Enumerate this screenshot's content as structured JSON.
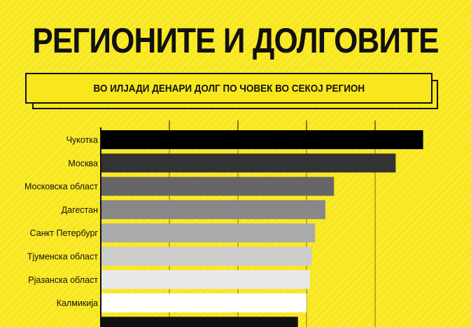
{
  "header": {
    "title": "РЕГИОНИТЕ И ДОЛГОВИТЕ",
    "subtitle": "ВО ИЛЈАДИ ДЕНАРИ ДОЛГ ПО ЧОВЕК ВО СЕКОЈ РЕГИОН"
  },
  "colors": {
    "background": "#f8e71c",
    "axis": "#111111",
    "bars": [
      "#000000",
      "#333333",
      "#666666",
      "#888888",
      "#aaaaaa",
      "#cccccc",
      "#e8e8e8",
      "#ffffff",
      "#111111"
    ]
  },
  "chart_data": {
    "type": "bar",
    "orientation": "horizontal",
    "categories": [
      "Чукотка",
      "Москва",
      "Московска област",
      "Дагестан",
      "Санкт Петербург",
      "Тјуменска област",
      "Рјазанска област",
      "Калмикија",
      ""
    ],
    "values": [
      94,
      86,
      68,
      65.5,
      62.5,
      61.5,
      61,
      60,
      57.5
    ],
    "xlim": [
      0,
      100
    ],
    "grid": true,
    "title": "",
    "xlabel": "",
    "ylabel": ""
  }
}
